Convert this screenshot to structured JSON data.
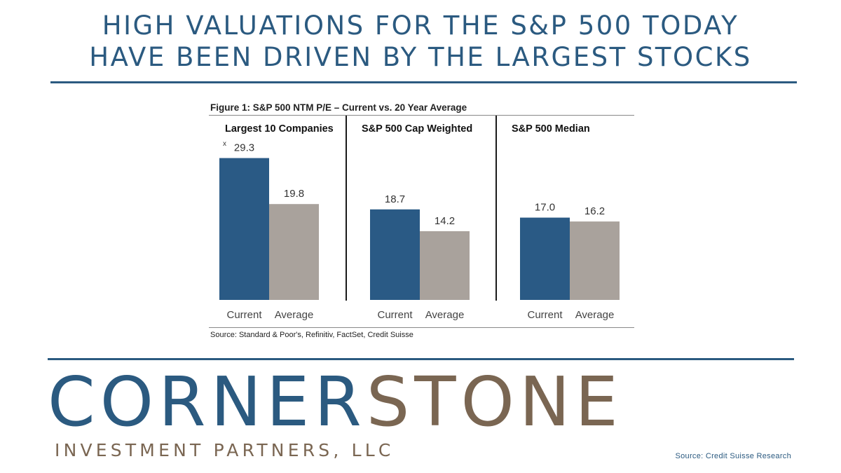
{
  "headline": {
    "line1": "HIGH VALUATIONS FOR THE S&P 500 TODAY",
    "line2": "HAVE BEEN DRIVEN BY THE LARGEST STOCKS"
  },
  "figure": {
    "title": "Figure 1: S&P 500 NTM P/E – Current vs. 20 Year Average",
    "unit_marker": "x",
    "source": "Source: Standard & Poor's, Refinitiv, FactSet, Credit Suisse"
  },
  "chart_data": {
    "type": "bar",
    "title": "Figure 1: S&P 500 NTM P/E – Current vs. 20 Year Average",
    "ylim": [
      0,
      33
    ],
    "grid": false,
    "colors": {
      "Current": "#2a5a85",
      "Average": "#a9a29c"
    },
    "panels": [
      {
        "title": "Largest 10 Companies",
        "categories": [
          "Current",
          "Average"
        ],
        "values": [
          29.3,
          19.8
        ],
        "labels": [
          "29.3",
          "19.8"
        ]
      },
      {
        "title": "S&P 500 Cap Weighted",
        "categories": [
          "Current",
          "Average"
        ],
        "values": [
          18.7,
          14.2
        ],
        "labels": [
          "18.7",
          "14.2"
        ]
      },
      {
        "title": "S&P 500 Median",
        "categories": [
          "Current",
          "Average"
        ],
        "values": [
          17.0,
          16.2
        ],
        "labels": [
          "17.0",
          "16.2"
        ]
      }
    ]
  },
  "brand": {
    "name_part1": "CORNER",
    "name_part2": "STONE",
    "subtitle": "INVESTMENT PARTNERS, LLC",
    "colors": {
      "blue": "#2b5a80",
      "brown": "#7a6652"
    }
  },
  "source_note": "Source: Credit Suisse Research"
}
